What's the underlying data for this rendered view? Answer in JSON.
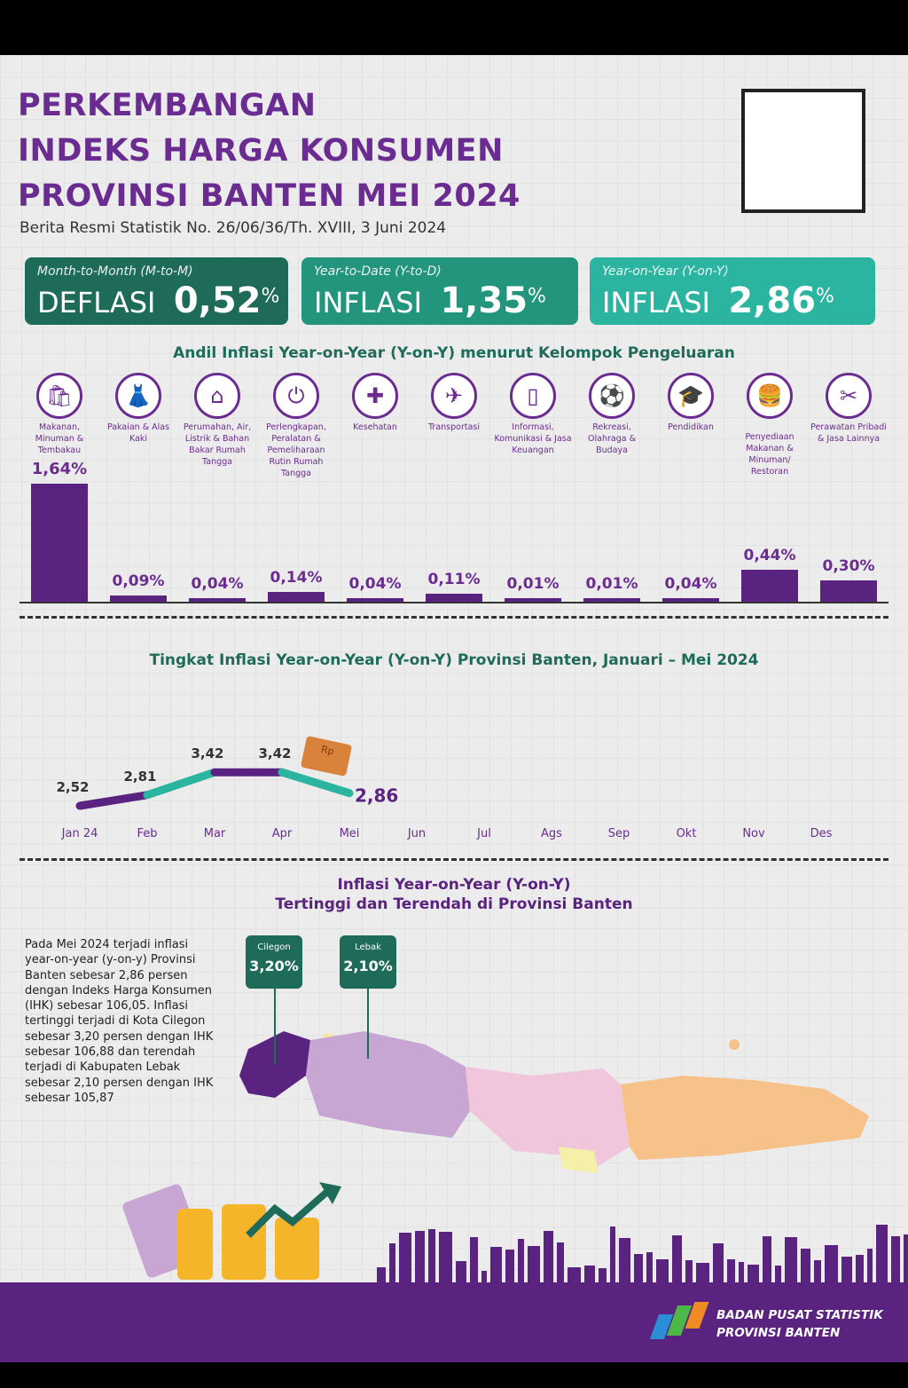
{
  "header": {
    "title_lines": [
      "PERKEMBANGAN",
      "INDEKS HARGA KONSUMEN",
      "PROVINSI BANTEN MEI 2024"
    ],
    "subtitle": "Berita Resmi Statistik No. 26/06/36/Th. XVIII, 3 Juni 2024"
  },
  "cards": [
    {
      "label": "Month-to-Month (M-to-M)",
      "kind": "DEFLASI",
      "value": "0,52",
      "unit": "%",
      "color": "#1e6b5a"
    },
    {
      "label": "Year-to-Date (Y-to-D)",
      "kind": "INFLASI",
      "value": "1,35",
      "unit": "%",
      "color": "#23957d"
    },
    {
      "label": "Year-on-Year (Y-on-Y)",
      "kind": "INFLASI",
      "value": "2,86",
      "unit": "%",
      "color": "#2bb5a0"
    }
  ],
  "colors": {
    "purple": "#5a237f",
    "teal": "#2bb5a0",
    "dark_green": "#1e6b5a"
  },
  "chart_data": [
    {
      "type": "bar",
      "title": "Andil Inflasi Year-on-Year (Y-on-Y) menurut Kelompok Pengeluaran",
      "categories": [
        "Makanan, Minuman & Tembakau",
        "Pakaian & Alas Kaki",
        "Perumahan, Air, Listrik & Bahan Bakar Rumah Tangga",
        "Perlengkapan, Peralatan & Pemeliharaan Rutin Rumah Tangga",
        "Kesehatan",
        "Transportasi",
        "Informasi, Komunikasi & Jasa Keuangan",
        "Rekreasi, Olahraga & Budaya",
        "Pendidikan",
        "Penyediaan Makanan & Minuman/ Restoran",
        "Perawatan Pribadi & Jasa Lainnya"
      ],
      "icons": [
        "grocery-bag-icon",
        "dress-icon",
        "house-icon",
        "plug-icon",
        "medical-kit-icon",
        "airplane-icon",
        "phone-icon",
        "soccer-player-icon",
        "graduation-cap-icon",
        "fast-food-icon",
        "scissors-comb-icon"
      ],
      "values": [
        1.64,
        0.09,
        0.04,
        0.14,
        0.04,
        0.11,
        0.01,
        0.01,
        0.04,
        0.44,
        0.3
      ],
      "labels": [
        "1,64%",
        "0,09%",
        "0,04%",
        "0,14%",
        "0,04%",
        "0,11%",
        "0,01%",
        "0,01%",
        "0,04%",
        "0,44%",
        "0,30%"
      ]
    },
    {
      "type": "line",
      "title": "Tingkat Inflasi Year-on-Year (Y-on-Y) Provinsi Banten, Januari – Mei  2024",
      "categories": [
        "Jan 24",
        "Feb",
        "Mar",
        "Apr",
        "Mei",
        "Jun",
        "Jul",
        "Ags",
        "Sep",
        "Okt",
        "Nov",
        "Des"
      ],
      "values": [
        2.52,
        2.81,
        3.42,
        3.42,
        2.86
      ],
      "labels": [
        "2,52",
        "2,81",
        "3,42",
        "3,42",
        "2,86"
      ]
    }
  ],
  "map": {
    "title_line1": "Inflasi Year-on-Year (Y-on-Y)",
    "title_line2": "Tertinggi dan Terendah di Provinsi Banten",
    "highest": {
      "name": "Cilegon",
      "value": "3,20%"
    },
    "lowest": {
      "name": "Lebak",
      "value": "2,10%"
    },
    "paragraph": "Pada Mei 2024 terjadi inflasi year-on-year (y-on-y) Provinsi Banten sebesar 2,86 persen dengan Indeks Harga Konsumen (IHK) sebesar 106,05. Inflasi tertinggi terjadi di Kota Cilegon sebesar 3,20 persen dengan IHK sebesar 106,88 dan terendah terjadi di Kabupaten Lebak sebesar 2,10 persen dengan IHK sebesar 105,87"
  },
  "footer": {
    "org_line1": "BADAN PUSAT STATISTIK",
    "org_line2": "PROVINSI BANTEN"
  }
}
